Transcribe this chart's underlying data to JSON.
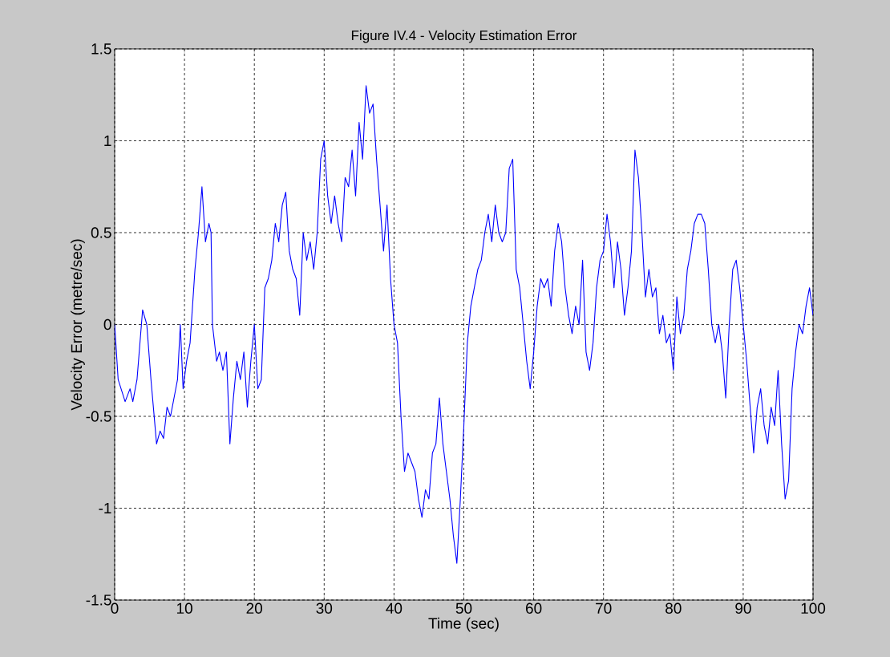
{
  "chart_data": {
    "type": "line",
    "title": "Figure IV.4 - Velocity Estimation Error",
    "xlabel": "Time (sec)",
    "ylabel": "Velocity Error (metre/sec)",
    "color": "#0000ff",
    "grid": true,
    "xlim": [
      0,
      100
    ],
    "ylim": [
      -1.5,
      1.5
    ],
    "xticks": [
      0,
      10,
      20,
      30,
      40,
      50,
      60,
      70,
      80,
      90,
      100
    ],
    "yticks": [
      -1.5,
      -1,
      -0.5,
      0,
      0.5,
      1,
      1.5
    ],
    "x": [
      0,
      0.5,
      1.5,
      2.2,
      2.6,
      3.2,
      4.0,
      4.6,
      5.2,
      6.0,
      6.5,
      7.0,
      7.5,
      8.0,
      8.6,
      9.0,
      9.4,
      9.8,
      10.3,
      10.8,
      11.5,
      12.0,
      12.5,
      13.0,
      13.5,
      13.8,
      14.0,
      14.6,
      15.0,
      15.5,
      16.0,
      16.5,
      17.0,
      17.5,
      18.0,
      18.5,
      19.0,
      19.5,
      20.0,
      20.5,
      21.0,
      21.5,
      22.0,
      22.5,
      23.0,
      23.5,
      24.0,
      24.5,
      25.0,
      25.5,
      26.0,
      26.5,
      27.0,
      27.5,
      28.0,
      28.5,
      29.0,
      29.5,
      30.0,
      30.5,
      31.0,
      31.5,
      32.0,
      32.5,
      33.0,
      33.5,
      34.0,
      34.5,
      35.0,
      35.5,
      36.0,
      36.5,
      37.0,
      37.5,
      38.0,
      38.5,
      39.0,
      39.5,
      40.0,
      40.5,
      41.0,
      41.5,
      42.0,
      42.5,
      43.0,
      43.5,
      44.0,
      44.5,
      45.0,
      45.5,
      46.0,
      46.5,
      47.0,
      47.5,
      48.0,
      48.5,
      49.0,
      49.5,
      50.0,
      50.5,
      51.0,
      51.5,
      52.0,
      52.5,
      53.0,
      53.5,
      54.0,
      54.5,
      55.0,
      55.5,
      56.0,
      56.5,
      57.0,
      57.5,
      58.0,
      58.5,
      59.0,
      59.5,
      60.0,
      60.5,
      61.0,
      61.5,
      62.0,
      62.5,
      63.0,
      63.5,
      64.0,
      64.5,
      65.0,
      65.5,
      66.0,
      66.5,
      67.0,
      67.5,
      68.0,
      68.5,
      69.0,
      69.5,
      70.0,
      70.5,
      71.0,
      71.5,
      72.0,
      72.5,
      73.0,
      73.5,
      74.0,
      74.5,
      75.0,
      75.5,
      76.0,
      76.5,
      77.0,
      77.5,
      78.0,
      78.5,
      79.0,
      79.5,
      80.0,
      80.5,
      81.0,
      81.5,
      82.0,
      82.5,
      83.0,
      83.5,
      84.0,
      84.5,
      85.0,
      85.5,
      86.0,
      86.5,
      87.0,
      87.5,
      88.0,
      88.5,
      89.0,
      89.5,
      90.0,
      90.5,
      91.0,
      91.5,
      92.0,
      92.5,
      93.0,
      93.5,
      94.0,
      94.5,
      95.0,
      95.5,
      96.0,
      96.5,
      97.0,
      97.5,
      98.0,
      98.5,
      99.0,
      99.5,
      100.0
    ],
    "values": [
      0.0,
      -0.3,
      -0.42,
      -0.35,
      -0.42,
      -0.3,
      0.08,
      0.0,
      -0.3,
      -0.65,
      -0.58,
      -0.62,
      -0.45,
      -0.5,
      -0.38,
      -0.3,
      0.0,
      -0.35,
      -0.2,
      -0.1,
      0.3,
      0.5,
      0.75,
      0.45,
      0.55,
      0.5,
      0.0,
      -0.2,
      -0.15,
      -0.25,
      -0.15,
      -0.65,
      -0.4,
      -0.2,
      -0.3,
      -0.15,
      -0.45,
      -0.2,
      0.0,
      -0.35,
      -0.3,
      0.2,
      0.25,
      0.35,
      0.55,
      0.45,
      0.65,
      0.72,
      0.4,
      0.3,
      0.25,
      0.05,
      0.5,
      0.35,
      0.45,
      0.3,
      0.5,
      0.9,
      1.0,
      0.7,
      0.55,
      0.7,
      0.55,
      0.45,
      0.8,
      0.75,
      0.95,
      0.7,
      1.1,
      0.9,
      1.3,
      1.15,
      1.2,
      0.9,
      0.65,
      0.4,
      0.65,
      0.25,
      0.0,
      -0.1,
      -0.5,
      -0.8,
      -0.7,
      -0.75,
      -0.8,
      -0.95,
      -1.05,
      -0.9,
      -0.95,
      -0.7,
      -0.65,
      -0.4,
      -0.65,
      -0.8,
      -0.95,
      -1.15,
      -1.3,
      -0.95,
      -0.55,
      -0.1,
      0.1,
      0.2,
      0.3,
      0.35,
      0.5,
      0.6,
      0.45,
      0.65,
      0.5,
      0.45,
      0.5,
      0.85,
      0.9,
      0.3,
      0.2,
      0.0,
      -0.2,
      -0.35,
      -0.15,
      0.1,
      0.25,
      0.2,
      0.25,
      0.1,
      0.4,
      0.55,
      0.45,
      0.2,
      0.05,
      -0.05,
      0.1,
      0.0,
      0.35,
      -0.15,
      -0.25,
      -0.1,
      0.2,
      0.35,
      0.4,
      0.6,
      0.45,
      0.2,
      0.45,
      0.3,
      0.05,
      0.2,
      0.4,
      0.95,
      0.8,
      0.5,
      0.15,
      0.3,
      0.15,
      0.2,
      -0.05,
      0.05,
      -0.1,
      -0.05,
      -0.25,
      0.15,
      -0.05,
      0.05,
      0.3,
      0.4,
      0.55,
      0.6,
      0.6,
      0.55,
      0.3,
      0.0,
      -0.1,
      0.0,
      -0.15,
      -0.4,
      0.0,
      0.3,
      0.35,
      0.2,
      0.0,
      -0.2,
      -0.45,
      -0.7,
      -0.45,
      -0.35,
      -0.55,
      -0.65,
      -0.45,
      -0.55,
      -0.25,
      -0.65,
      -0.95,
      -0.85,
      -0.35,
      -0.15,
      0.0,
      -0.05,
      0.1,
      0.2,
      0.05
    ]
  }
}
